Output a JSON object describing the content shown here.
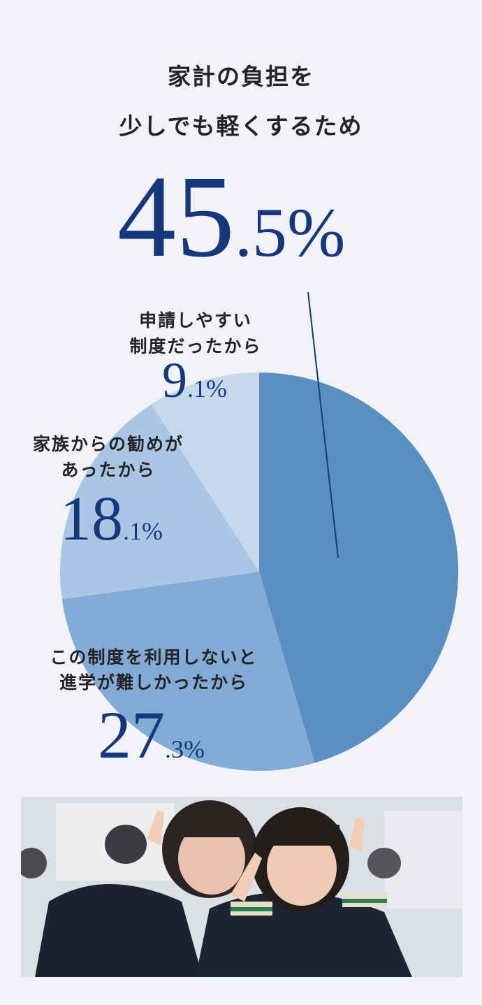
{
  "headline": {
    "line1": "家計の負担を",
    "line2": "少しでも軽くするため",
    "value_int": "45",
    "value_dec": ".5%"
  },
  "labels": {
    "s2": {
      "line1": "この制度を利用しないと",
      "line2": "進学が難しかったから",
      "int": "27",
      "dec": ".3%"
    },
    "s3": {
      "line1": "家族からの勧めが",
      "line2": "あったから",
      "int": "18",
      "dec": ".1%"
    },
    "s4": {
      "line1": "申請しやすい",
      "line2": "制度だったから",
      "int": "9",
      "dec": ".1%"
    }
  },
  "chart_data": {
    "type": "pie",
    "start_angle": "12 o'clock, clockwise",
    "slices": [
      {
        "label": "家計の負担を少しでも軽くするため",
        "value": 45.5,
        "color": "#5a8fc2"
      },
      {
        "label": "この制度を利用しないと進学が難しかったから",
        "value": 27.3,
        "color": "#84abd6"
      },
      {
        "label": "家族からの勧めがあったから",
        "value": 18.1,
        "color": "#aac6e4"
      },
      {
        "label": "申請しやすい制度だったから",
        "value": 9.1,
        "color": "#c6d8ec"
      }
    ]
  },
  "colors": {
    "background": "#f1f3f8",
    "text": "#222326",
    "number": "#16387a",
    "leader_line": "#16387a"
  },
  "photo": {
    "icon": "students-peace-sign-photo"
  }
}
